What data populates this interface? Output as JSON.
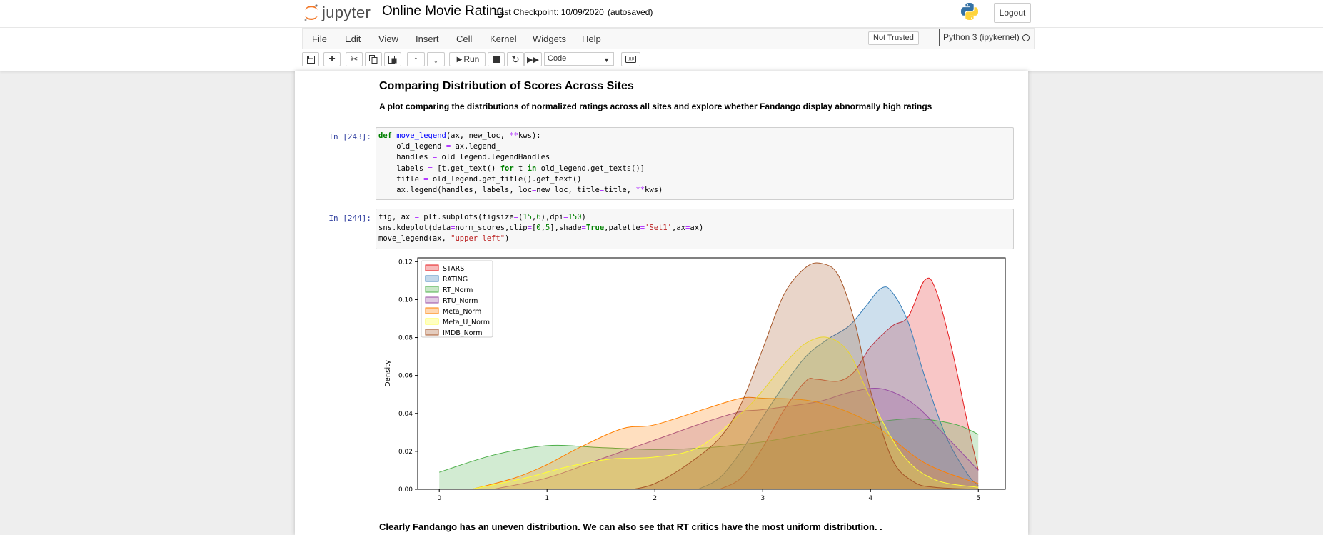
{
  "header": {
    "logo_text": "jupyter",
    "notebook_title": "Online Movie Rating",
    "checkpoint": "Last Checkpoint: 10/09/2020",
    "autosave": "(autosaved)",
    "logout_label": "Logout"
  },
  "menu": [
    "File",
    "Edit",
    "Insert",
    "Cell",
    "Kernel",
    "Widgets",
    "Help"
  ],
  "menu_view": "View",
  "trust_badge": "Not Trusted",
  "kernel_name": "Python 3 (ipykernel)",
  "toolbar": {
    "run_label": "Run",
    "cell_type": "Code"
  },
  "markdown": {
    "heading": "Comparing Distribution of Scores Across Sites",
    "description": "A plot comparing the distributions of normalized ratings across all sites and explore whether Fandango display abnormally high ratings",
    "conclusion": "Clearly Fandango has an uneven distribution. We can also see that RT critics have the most uniform distribution. ."
  },
  "cells": [
    {
      "prompt": "In [243]:",
      "lines": [
        "def move_legend(ax, new_loc, **kws):",
        "    old_legend = ax.legend_",
        "    handles = old_legend.legendHandles",
        "    labels = [t.get_text() for t in old_legend.get_texts()]",
        "    title = old_legend.get_title().get_text()",
        "    ax.legend(handles, labels, loc=new_loc, title=title, **kws)"
      ]
    },
    {
      "prompt": "In [244]:",
      "lines": [
        "fig, ax = plt.subplots(figsize=(15,6),dpi=150)",
        "sns.kdeplot(data=norm_scores,clip=[0,5],shade=True,palette='Set1',ax=ax)",
        "move_legend(ax, \"upper left\")"
      ]
    }
  ],
  "chart_data": {
    "type": "area",
    "title": "",
    "xlabel": "",
    "ylabel": "Density",
    "xlim": [
      -0.2,
      5.25
    ],
    "ylim": [
      0,
      0.122
    ],
    "x_ticks": [
      0,
      1,
      2,
      3,
      4,
      5
    ],
    "y_ticks": [
      0.0,
      0.02,
      0.04,
      0.06,
      0.08,
      0.1,
      0.12
    ],
    "legend_position": "upper-left",
    "grid": false,
    "series": [
      {
        "name": "STARS",
        "color": "#e41a1c",
        "x": [
          2.6,
          2.8,
          3.0,
          3.2,
          3.4,
          3.5,
          3.7,
          3.85,
          4.0,
          4.2,
          4.35,
          4.5,
          4.6,
          4.75,
          4.9,
          5.0
        ],
        "y": [
          0.0,
          0.006,
          0.022,
          0.042,
          0.057,
          0.058,
          0.057,
          0.062,
          0.075,
          0.086,
          0.091,
          0.11,
          0.106,
          0.075,
          0.035,
          0.01
        ]
      },
      {
        "name": "RATING",
        "color": "#377eb8",
        "x": [
          2.4,
          2.6,
          2.8,
          3.0,
          3.2,
          3.4,
          3.6,
          3.8,
          3.95,
          4.1,
          4.2,
          4.35,
          4.5,
          4.7,
          4.9,
          5.0
        ],
        "y": [
          0.0,
          0.006,
          0.02,
          0.038,
          0.055,
          0.07,
          0.079,
          0.086,
          0.096,
          0.106,
          0.104,
          0.088,
          0.06,
          0.028,
          0.008,
          0.002
        ]
      },
      {
        "name": "RT_Norm",
        "color": "#4daf4a",
        "x": [
          0,
          0.5,
          1.0,
          1.5,
          2.0,
          2.5,
          3.0,
          3.5,
          4.0,
          4.3,
          4.5,
          4.8,
          5.0
        ],
        "y": [
          0.009,
          0.018,
          0.023,
          0.022,
          0.021,
          0.022,
          0.025,
          0.03,
          0.035,
          0.037,
          0.037,
          0.034,
          0.029
        ]
      },
      {
        "name": "RTU_Norm",
        "color": "#984ea3",
        "x": [
          0.5,
          1.0,
          1.5,
          2.0,
          2.5,
          2.8,
          3.0,
          3.5,
          3.8,
          4.1,
          4.4,
          4.7,
          5.0
        ],
        "y": [
          0.0,
          0.006,
          0.016,
          0.026,
          0.036,
          0.041,
          0.042,
          0.046,
          0.051,
          0.053,
          0.045,
          0.028,
          0.01
        ]
      },
      {
        "name": "Meta_Norm",
        "color": "#ff7f00",
        "x": [
          0.3,
          0.7,
          1.0,
          1.3,
          1.7,
          2.0,
          2.5,
          2.8,
          3.0,
          3.5,
          4.0,
          4.5,
          5.0
        ],
        "y": [
          0.0,
          0.006,
          0.013,
          0.022,
          0.032,
          0.034,
          0.043,
          0.048,
          0.048,
          0.046,
          0.035,
          0.014,
          0.003
        ]
      },
      {
        "name": "Meta_U_Norm",
        "color": "#ffff33",
        "x": [
          0.3,
          0.8,
          1.2,
          1.6,
          2.0,
          2.4,
          2.8,
          3.0,
          3.2,
          3.4,
          3.6,
          3.8,
          4.0,
          4.3,
          4.6,
          5.0
        ],
        "y": [
          0.0,
          0.006,
          0.012,
          0.016,
          0.017,
          0.022,
          0.04,
          0.052,
          0.066,
          0.077,
          0.08,
          0.072,
          0.048,
          0.018,
          0.005,
          0.001
        ]
      },
      {
        "name": "IMDB_Norm",
        "color": "#a65628",
        "x": [
          1.8,
          2.0,
          2.3,
          2.6,
          2.8,
          3.0,
          3.2,
          3.4,
          3.55,
          3.7,
          3.85,
          4.0,
          4.2,
          4.4,
          4.6,
          5.0
        ],
        "y": [
          0.0,
          0.003,
          0.013,
          0.027,
          0.045,
          0.074,
          0.103,
          0.117,
          0.119,
          0.113,
          0.089,
          0.052,
          0.016,
          0.004,
          0.001,
          0.0
        ]
      }
    ]
  }
}
